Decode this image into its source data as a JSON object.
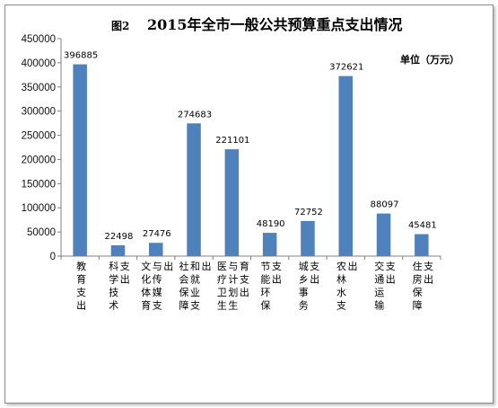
{
  "chart_data": {
    "type": "bar",
    "figure_label": "图2",
    "title": "2015年全市一般公共预算重点支出情况",
    "unit_label": "单位（万元）",
    "ylim": [
      0,
      450000
    ],
    "yticks": [
      0,
      50000,
      100000,
      150000,
      200000,
      250000,
      300000,
      350000,
      400000,
      450000
    ],
    "bar_color": "#4f81bd",
    "grid": false,
    "categories": [
      "教育支出",
      "科学技术支出",
      "文化体育与传媒支出",
      "社会保障和就业支出",
      "医疗卫生与计划生育支出",
      "节能环保支出",
      "城乡事务支出",
      "农林水支出",
      "交通运输支出",
      "住房保障支出"
    ],
    "values": [
      396885,
      22498,
      27476,
      274683,
      221101,
      48190,
      72752,
      372621,
      88097,
      45481
    ]
  }
}
